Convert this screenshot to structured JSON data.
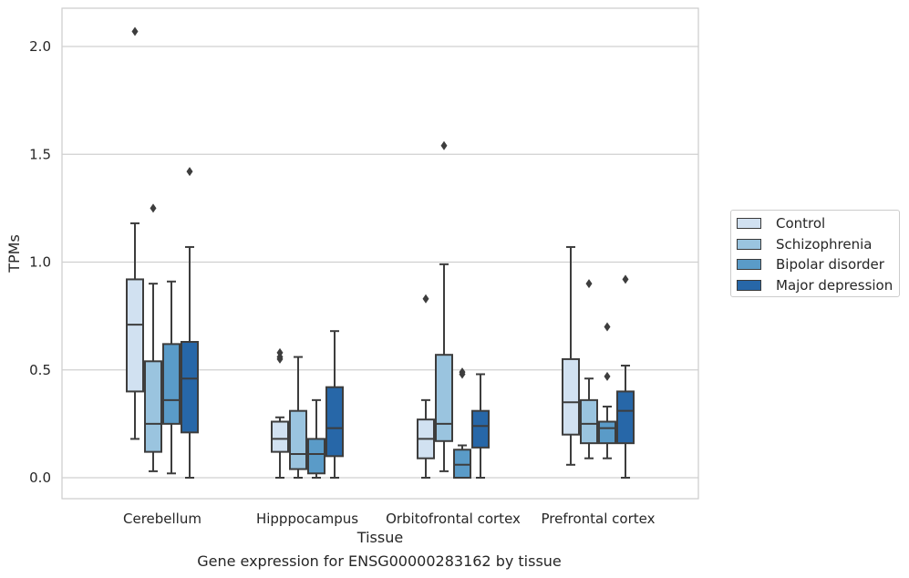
{
  "caption": "Gene expression for ENSG00000283162 by tissue",
  "chart_data": {
    "type": "box",
    "xlabel": "Tissue",
    "ylabel": "TPMs",
    "ylim": [
      -0.1,
      2.18
    ],
    "yticks": [
      "0.0",
      "0.5",
      "1.0",
      "1.5",
      "2.0"
    ],
    "grid": "horizontal",
    "legend_position": "right",
    "categories": [
      "Cerebellum",
      "Hipppocampus",
      "Orbitofrontal cortex",
      "Prefrontal cortex"
    ],
    "series": [
      {
        "name": "Control",
        "color": "#d1e1f1",
        "boxes": [
          {
            "whislo": 0.18,
            "q1": 0.4,
            "median": 0.71,
            "q3": 0.92,
            "whishi": 1.18,
            "fliers": [
              2.07
            ]
          },
          {
            "whislo": 0.0,
            "q1": 0.12,
            "median": 0.18,
            "q3": 0.26,
            "whishi": 0.28,
            "fliers": [
              0.55,
              0.56,
              0.58
            ]
          },
          {
            "whislo": 0.0,
            "q1": 0.09,
            "median": 0.18,
            "q3": 0.27,
            "whishi": 0.36,
            "fliers": [
              0.83
            ]
          },
          {
            "whislo": 0.06,
            "q1": 0.2,
            "median": 0.35,
            "q3": 0.55,
            "whishi": 1.07,
            "fliers": []
          }
        ]
      },
      {
        "name": "Schizophrenia",
        "color": "#9ac4df",
        "boxes": [
          {
            "whislo": 0.03,
            "q1": 0.12,
            "median": 0.25,
            "q3": 0.54,
            "whishi": 0.9,
            "fliers": [
              1.25
            ]
          },
          {
            "whislo": 0.0,
            "q1": 0.04,
            "median": 0.11,
            "q3": 0.31,
            "whishi": 0.56,
            "fliers": []
          },
          {
            "whislo": 0.03,
            "q1": 0.17,
            "median": 0.25,
            "q3": 0.57,
            "whishi": 0.99,
            "fliers": [
              1.54
            ]
          },
          {
            "whislo": 0.09,
            "q1": 0.16,
            "median": 0.25,
            "q3": 0.36,
            "whishi": 0.46,
            "fliers": [
              0.9
            ]
          }
        ]
      },
      {
        "name": "Bipolar disorder",
        "color": "#5a9bc8",
        "boxes": [
          {
            "whislo": 0.02,
            "q1": 0.25,
            "median": 0.36,
            "q3": 0.62,
            "whishi": 0.91,
            "fliers": []
          },
          {
            "whislo": 0.0,
            "q1": 0.02,
            "median": 0.11,
            "q3": 0.18,
            "whishi": 0.36,
            "fliers": []
          },
          {
            "whislo": 0.0,
            "q1": 0.0,
            "median": 0.06,
            "q3": 0.13,
            "whishi": 0.15,
            "fliers": [
              0.48,
              0.49
            ]
          },
          {
            "whislo": 0.09,
            "q1": 0.16,
            "median": 0.23,
            "q3": 0.26,
            "whishi": 0.33,
            "fliers": [
              0.47,
              0.7
            ]
          }
        ]
      },
      {
        "name": "Major depression",
        "color": "#2767a8",
        "boxes": [
          {
            "whislo": 0.0,
            "q1": 0.21,
            "median": 0.46,
            "q3": 0.63,
            "whishi": 1.07,
            "fliers": [
              1.42
            ]
          },
          {
            "whislo": 0.0,
            "q1": 0.1,
            "median": 0.23,
            "q3": 0.42,
            "whishi": 0.68,
            "fliers": []
          },
          {
            "whislo": 0.0,
            "q1": 0.14,
            "median": 0.24,
            "q3": 0.31,
            "whishi": 0.48,
            "fliers": []
          },
          {
            "whislo": 0.0,
            "q1": 0.16,
            "median": 0.31,
            "q3": 0.4,
            "whishi": 0.52,
            "fliers": [
              0.92
            ]
          }
        ]
      }
    ]
  }
}
